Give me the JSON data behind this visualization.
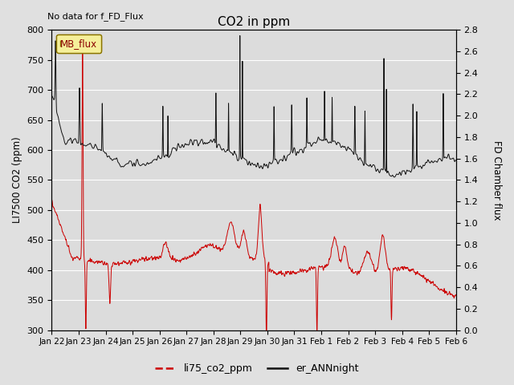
{
  "title": "CO2 in ppm",
  "ylabel_left": "LI7500 CO2 (ppm)",
  "ylabel_right": "FD Chamber flux",
  "ylim_left": [
    300,
    800
  ],
  "ylim_right": [
    0.0,
    2.8
  ],
  "top_left_text": "No data for f_FD_Flux",
  "mb_flux_label": "MB_flux",
  "legend_entries": [
    "li75_co2_ppm",
    "er_ANNnight"
  ],
  "line_colors": [
    "#cc0000",
    "#111111"
  ],
  "fig_bg_color": "#e0e0e0",
  "plot_bg_color": "#dcdcdc",
  "n_points": 5000,
  "seed": 42
}
